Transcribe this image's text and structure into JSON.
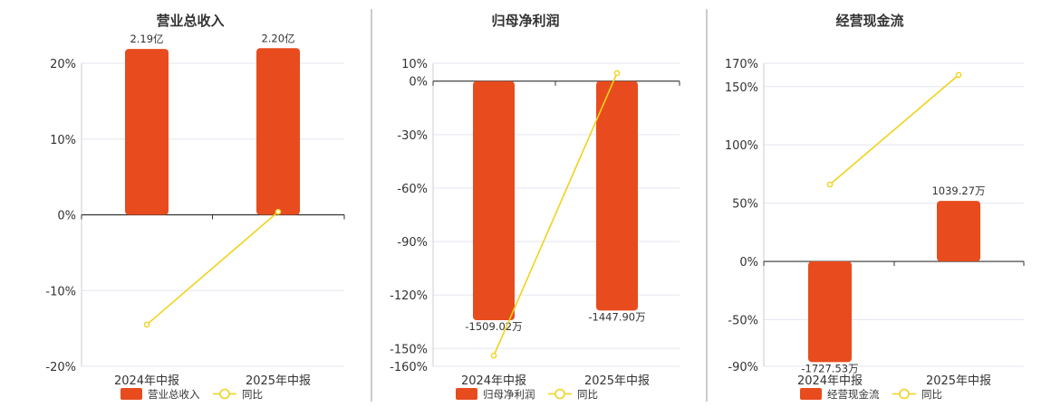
{
  "colors": {
    "bar": "#e84c1e",
    "line": "#f2d21b",
    "axis": "#333333",
    "grid": "#e3e6f0",
    "divider": "#999999",
    "text": "#333333"
  },
  "chart_data": [
    {
      "type": "bar",
      "title": "营业总收入",
      "categories": [
        "2024年中报",
        "2025年中报"
      ],
      "series": [
        {
          "name": "营业总收入",
          "values": [
            2.19,
            2.2
          ],
          "value_labels": [
            "2.19亿",
            "2.20亿"
          ]
        },
        {
          "name": "同比",
          "type": "line",
          "values": [
            -14.5,
            0.4
          ]
        }
      ],
      "bar_axis": {
        "range": [
          -2.0,
          2.0
        ]
      },
      "ylim": [
        -20,
        20
      ],
      "yticks": [
        20,
        10,
        0,
        -10,
        -20
      ],
      "ytick_labels": [
        "20%",
        "10%",
        "0%",
        "-10%",
        "-20%"
      ],
      "legend": "bottom",
      "grid": true
    },
    {
      "type": "bar",
      "title": "归母净利润",
      "categories": [
        "2024年中报",
        "2025年中报"
      ],
      "series": [
        {
          "name": "归母净利润",
          "values": [
            -1509.02,
            -1447.9
          ],
          "value_labels": [
            "-1509.02万",
            "-1447.90万"
          ]
        },
        {
          "name": "同比",
          "type": "line",
          "values": [
            -154,
            4.5
          ]
        }
      ],
      "bar_axis": {
        "range": [
          -1800,
          112.5
        ]
      },
      "ylim": [
        -160,
        10
      ],
      "yticks": [
        10,
        0,
        -30,
        -60,
        -90,
        -120,
        -150,
        -160
      ],
      "ytick_labels": [
        "10%",
        "0%",
        "-30%",
        "-60%",
        "-90%",
        "-120%",
        "-150%",
        "-160%"
      ],
      "legend": "bottom",
      "grid": true
    },
    {
      "type": "bar",
      "title": "经营现金流",
      "categories": [
        "2024年中报",
        "2025年中报"
      ],
      "series": [
        {
          "name": "经营现金流",
          "values": [
            -1727.53,
            1039.27
          ],
          "value_labels": [
            "-1727.53万",
            "1039.27万"
          ]
        },
        {
          "name": "同比",
          "type": "line",
          "values": [
            66,
            160
          ]
        }
      ],
      "bar_axis": {
        "range": [
          -1800,
          3400
        ]
      },
      "ylim": [
        -90,
        170
      ],
      "yticks": [
        170,
        150,
        100,
        50,
        0,
        -50,
        -90
      ],
      "ytick_labels": [
        "170%",
        "150%",
        "100%",
        "50%",
        "0%",
        "-50%",
        "-90%"
      ],
      "legend": "bottom",
      "grid": true
    }
  ]
}
